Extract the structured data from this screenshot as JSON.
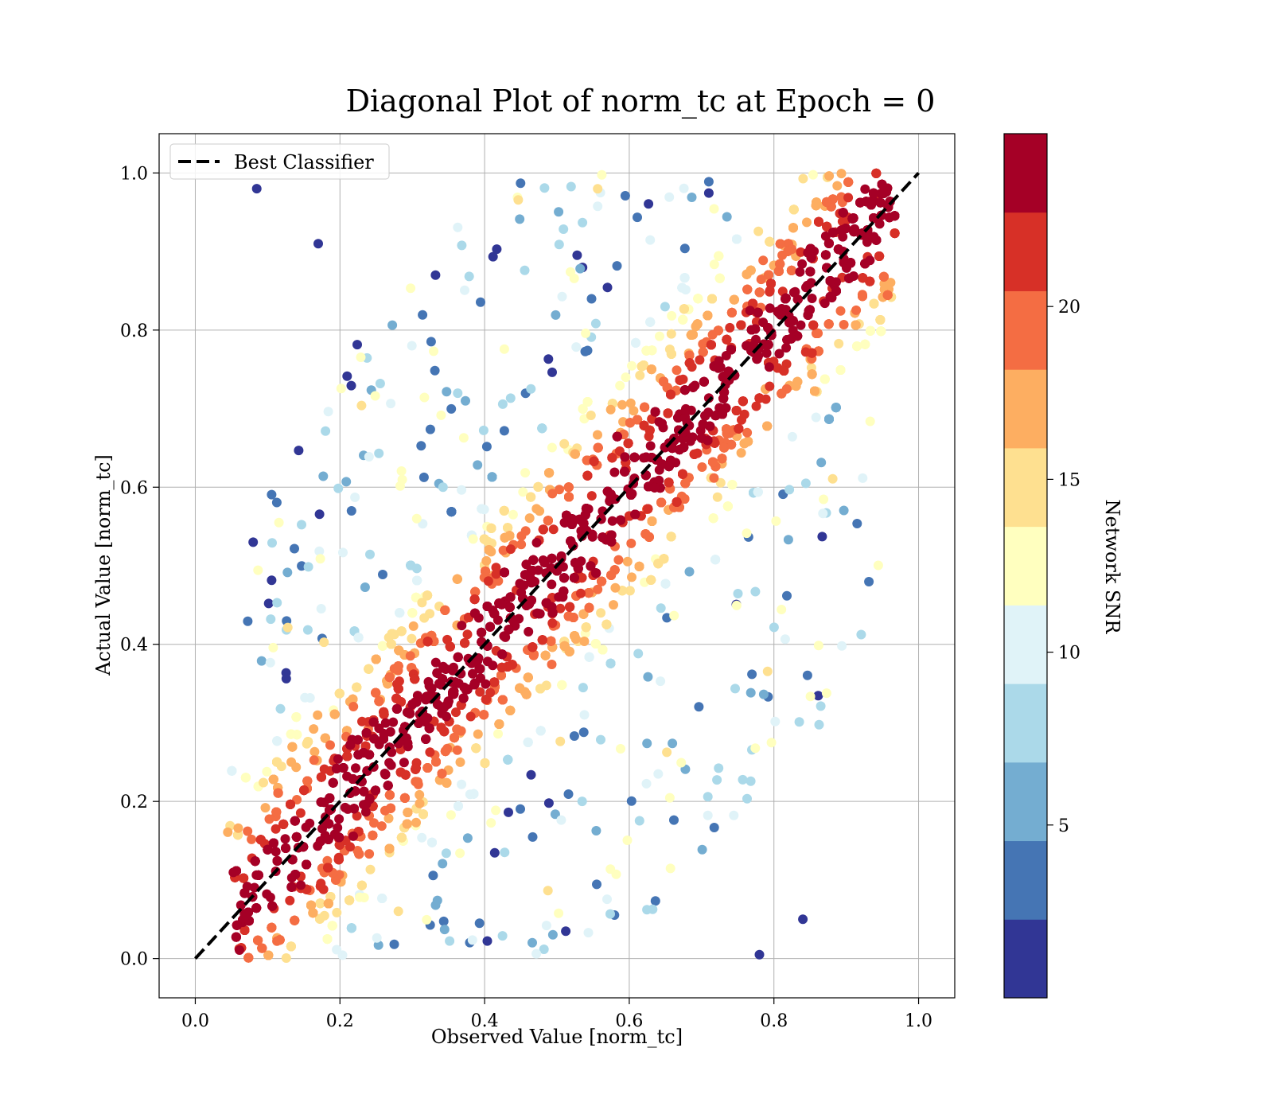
{
  "chart_data": {
    "type": "scatter",
    "title": "Diagonal Plot of norm_tc at Epoch = 0",
    "xlabel": "Observed Value [norm_tc]",
    "ylabel": "Actual Value [norm_tc]",
    "xlim": [
      -0.05,
      1.05
    ],
    "ylim": [
      -0.05,
      1.05
    ],
    "xticks": [
      "0.0",
      "0.2",
      "0.4",
      "0.6",
      "0.8",
      "1.0"
    ],
    "yticks": [
      "0.0",
      "0.2",
      "0.4",
      "0.6",
      "0.8",
      "1.0"
    ],
    "grid": true,
    "legend": {
      "position": "upper-left",
      "entries": [
        "Best Classifier"
      ]
    },
    "reference_line": {
      "name": "Best Classifier",
      "x": [
        0,
        1
      ],
      "y": [
        0,
        1
      ],
      "style": "dashed",
      "color": "#000000"
    },
    "colorbar": {
      "label": "Network SNR",
      "range": [
        0,
        25
      ],
      "ticks": [
        "5",
        "10",
        "15",
        "20"
      ],
      "colors": [
        "#313695",
        "#4575b4",
        "#74add1",
        "#abd9e9",
        "#e0f3f8",
        "#ffffbf",
        "#fee090",
        "#fdae61",
        "#f46d43",
        "#d73027",
        "#a50026"
      ]
    },
    "series": [
      {
        "snr_band": "22-25",
        "color": "#a50026",
        "description_points": [
          [
            0.1,
            0.08
          ],
          [
            0.2,
            0.2
          ],
          [
            0.3,
            0.3
          ],
          [
            0.4,
            0.4
          ],
          [
            0.5,
            0.5
          ],
          [
            0.6,
            0.6
          ],
          [
            0.7,
            0.7
          ],
          [
            0.8,
            0.8
          ],
          [
            0.9,
            0.9
          ]
        ]
      },
      {
        "snr_band": "0-5",
        "color": "#313695",
        "points": [
          [
            0.085,
            0.98
          ],
          [
            0.08,
            0.53
          ],
          [
            0.17,
            0.91
          ],
          [
            0.84,
            0.05
          ],
          [
            0.78,
            0.005
          ]
        ]
      }
    ]
  }
}
